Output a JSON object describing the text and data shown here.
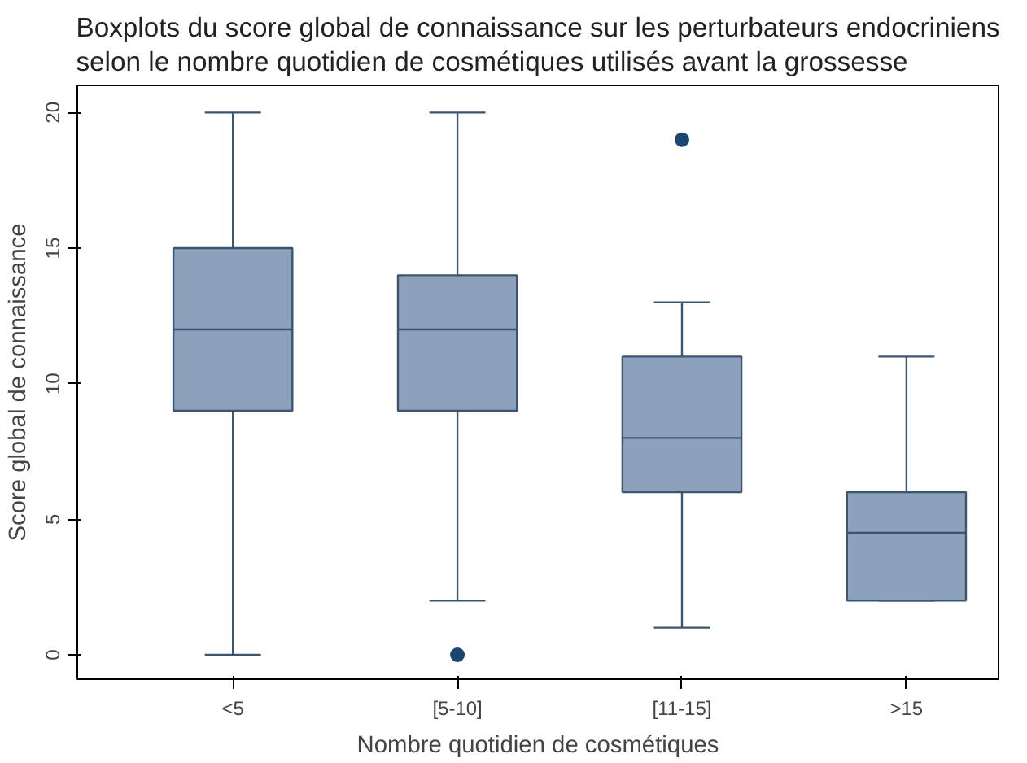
{
  "chart_data": {
    "type": "box",
    "title": "Boxplots du score global de connaissance sur les perturbateurs endocriniens\nselon le nombre quotidien de cosmétiques utilisés avant la grossesse",
    "xlabel": "Nombre quotidien de cosmétiques",
    "ylabel": "Score global de connaissance",
    "categories": [
      "<5",
      "[5-10]",
      "[11-15]",
      ">15"
    ],
    "boxes": [
      {
        "low": 0,
        "q1": 9,
        "median": 12,
        "q3": 15,
        "high": 20
      },
      {
        "low": 2,
        "q1": 9,
        "median": 12,
        "q3": 14,
        "high": 20,
        "outliers": [
          0
        ]
      },
      {
        "low": 1,
        "q1": 6,
        "median": 8,
        "q3": 11,
        "high": 13,
        "outliers": [
          19
        ]
      },
      {
        "low": 2,
        "q1": 2,
        "median": 4.5,
        "q3": 6,
        "high": 11
      }
    ],
    "color": "#8da1ba",
    "ylim": [
      -0.9,
      21
    ],
    "yticks": [
      0,
      5,
      10,
      15,
      20
    ],
    "grid": false
  }
}
